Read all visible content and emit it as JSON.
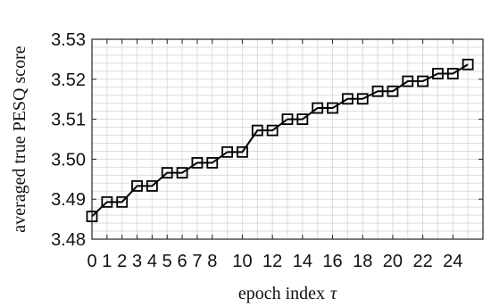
{
  "chart_data": {
    "type": "line",
    "xlabel": "epoch index",
    "xlabel_symbol": "τ",
    "ylabel": "averaged true PESQ score",
    "xlim": [
      0,
      26
    ],
    "ylim": [
      3.48,
      3.53
    ],
    "grid": true,
    "x_ticks": [
      0,
      1,
      2,
      3,
      4,
      5,
      6,
      7,
      8,
      10,
      12,
      14,
      16,
      18,
      20,
      22,
      24
    ],
    "x_tick_labels": [
      "0",
      "1",
      "2",
      "3",
      "4",
      "5",
      "6",
      "7",
      "8",
      "10",
      "12",
      "14",
      "16",
      "18",
      "20",
      "22",
      "24"
    ],
    "y_ticks": [
      3.48,
      3.49,
      3.5,
      3.51,
      3.52,
      3.53
    ],
    "y_tick_labels": [
      "3.48",
      "3.49",
      "3.50",
      "3.51",
      "3.52",
      "3.53"
    ],
    "series": [
      {
        "marker": "square",
        "color": "#000000",
        "x": [
          0,
          1,
          2,
          3,
          4,
          5,
          6,
          7,
          8,
          9,
          10,
          11,
          12,
          13,
          14,
          15,
          16,
          17,
          18,
          19,
          20,
          21,
          22,
          23,
          24,
          25
        ],
        "y": [
          3.4857,
          3.4893,
          3.4893,
          3.4933,
          3.4933,
          3.4966,
          3.4966,
          3.4991,
          3.4991,
          3.5018,
          3.5018,
          3.5072,
          3.5072,
          3.51,
          3.51,
          3.5128,
          3.5128,
          3.5151,
          3.5151,
          3.517,
          3.517,
          3.5195,
          3.5195,
          3.5214,
          3.5214,
          3.5237
        ]
      }
    ]
  }
}
